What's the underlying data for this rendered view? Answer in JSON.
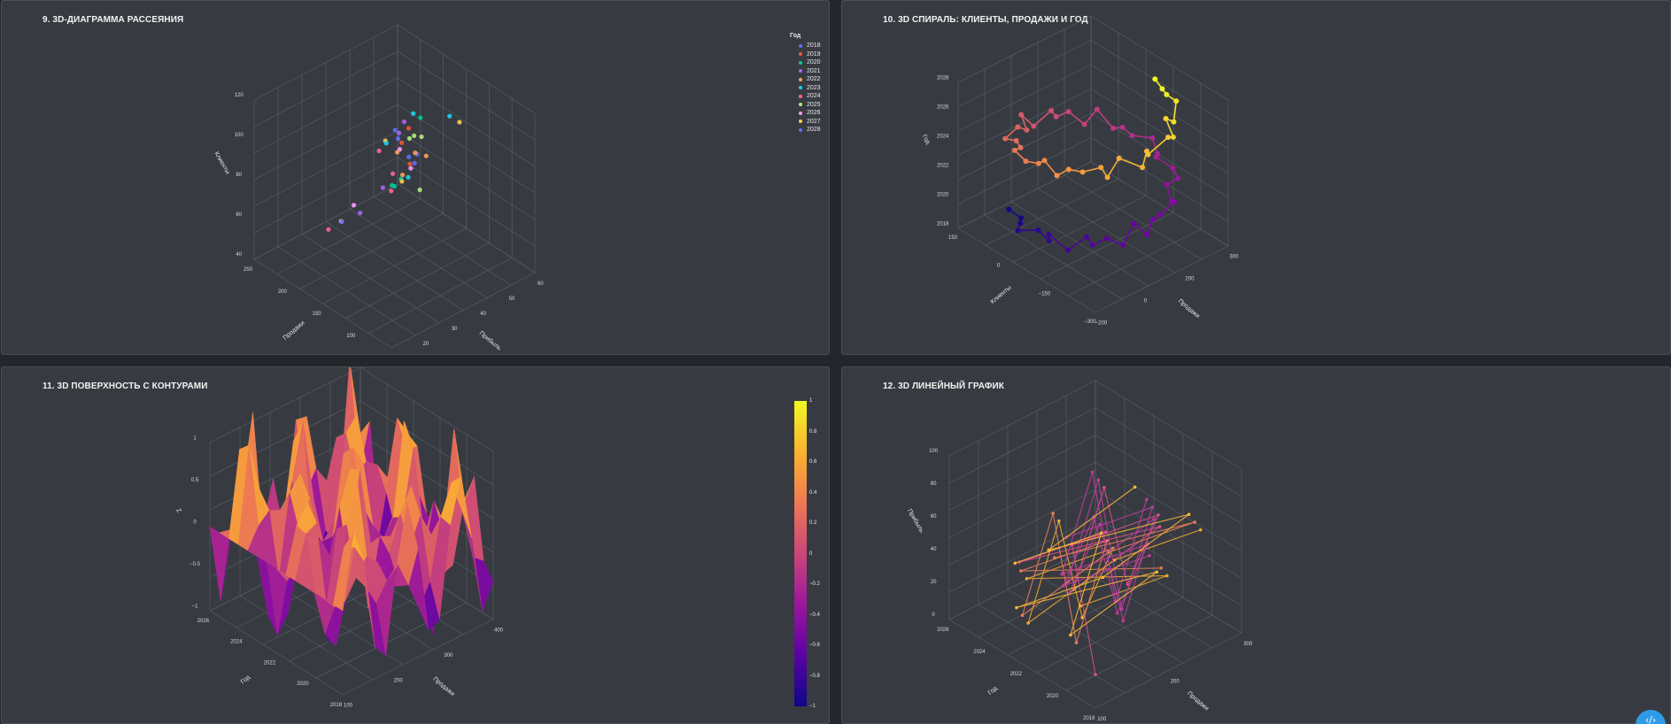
{
  "panels": [
    {
      "id": "p9",
      "title": "9. 3D-ДИАГРАММА РАССЕЯНИЯ"
    },
    {
      "id": "p10",
      "title": "10. 3D СПИРАЛЬ: КЛИЕНТЫ, ПРОДАЖИ И ГОД"
    },
    {
      "id": "p11",
      "title": "11. 3D ПОВЕРХНОСТЬ С КОНТУРАМИ"
    },
    {
      "id": "p12",
      "title": "12. 3D ЛИНЕЙНЫЙ ГРАФИК"
    }
  ],
  "fab": {
    "icon": "code-toggle-icon",
    "glyph": "‹/›"
  },
  "colors": {
    "panel": "#373b41",
    "page": "#23262b",
    "grid": "#5a5f68",
    "text": "#e8e8e8"
  },
  "chart_data": [
    {
      "panel": "p9",
      "type": "scatter",
      "title": "9. 3D-ДИАГРАММА РАССЕЯНИЯ",
      "axes": {
        "z": {
          "label": "Клиенты",
          "ticks": [
            "40",
            "60",
            "80",
            "100",
            "120"
          ]
        },
        "x": {
          "label": "Прибыль",
          "ticks": [
            "10",
            "20",
            "30",
            "40",
            "50",
            "60"
          ]
        },
        "y": {
          "label": "Продажи",
          "ticks": [
            "50",
            "100",
            "150",
            "200",
            "250"
          ]
        }
      },
      "legend": {
        "title": "Год",
        "placement": "top-right",
        "items": [
          {
            "name": "2018",
            "color": "#636efa"
          },
          {
            "name": "2019",
            "color": "#ef553b"
          },
          {
            "name": "2020",
            "color": "#00cc96"
          },
          {
            "name": "2021",
            "color": "#ab63fa"
          },
          {
            "name": "2022",
            "color": "#ffa15a"
          },
          {
            "name": "2023",
            "color": "#19d3f3"
          },
          {
            "name": "2024",
            "color": "#ff6692"
          },
          {
            "name": "2025",
            "color": "#b6e880"
          },
          {
            "name": "2026",
            "color": "#ff97ff"
          },
          {
            "name": "2027",
            "color": "#fecb52"
          },
          {
            "name": "2028",
            "color": "#636efa"
          }
        ]
      },
      "points": [
        [
          32,
          170,
          95,
          0
        ],
        [
          35,
          160,
          100,
          1
        ],
        [
          30,
          140,
          90,
          2
        ],
        [
          38,
          175,
          105,
          3
        ],
        [
          34,
          150,
          98,
          4
        ],
        [
          36,
          180,
          110,
          5
        ],
        [
          31,
          130,
          85,
          6
        ],
        [
          40,
          190,
          92,
          7
        ],
        [
          33,
          165,
          88,
          8
        ],
        [
          37,
          145,
          102,
          9
        ],
        [
          29,
          155,
          96,
          10
        ],
        [
          35,
          170,
          91,
          0
        ],
        [
          39,
          185,
          99,
          1
        ],
        [
          32,
          135,
          86,
          2
        ],
        [
          36,
          160,
          104,
          3
        ],
        [
          34,
          175,
          93,
          4
        ],
        [
          30,
          150,
          89,
          5
        ],
        [
          38,
          140,
          97,
          6
        ],
        [
          33,
          180,
          101,
          7
        ],
        [
          37,
          165,
          94,
          8
        ],
        [
          31,
          145,
          87,
          9
        ],
        [
          35,
          155,
          103,
          10
        ],
        [
          40,
          170,
          100,
          0
        ],
        [
          32,
          160,
          92,
          1
        ],
        [
          36,
          190,
          106,
          2
        ],
        [
          34,
          130,
          84,
          3
        ],
        [
          30,
          175,
          95,
          4
        ],
        [
          38,
          150,
          99,
          5
        ],
        [
          33,
          140,
          90,
          6
        ],
        [
          37,
          185,
          97,
          7
        ],
        [
          42,
          120,
          70,
          8
        ],
        [
          44,
          110,
          62,
          9
        ],
        [
          46,
          100,
          58,
          6
        ],
        [
          41,
          125,
          66,
          3
        ],
        [
          45,
          115,
          60,
          0
        ],
        [
          28,
          200,
          112,
          5
        ],
        [
          27,
          210,
          108,
          9
        ],
        [
          35,
          150,
          80,
          2
        ],
        [
          36,
          165,
          82,
          4
        ],
        [
          31,
          170,
          78,
          7
        ]
      ]
    },
    {
      "panel": "p10",
      "type": "line",
      "title": "10. 3D СПИРАЛЬ: КЛИЕНТЫ, ПРОДАЖИ И ГОД",
      "axes": {
        "z": {
          "label": "Год",
          "ticks": [
            "2018",
            "2020",
            "2022",
            "2024",
            "2026",
            "2028"
          ]
        },
        "x": {
          "label": "Продажи",
          "ticks": [
            "−200",
            "0",
            "200",
            "300"
          ]
        },
        "y": {
          "label": "Клиенты",
          "ticks": [
            "−300",
            "−150",
            "0",
            "150"
          ]
        }
      },
      "series": [
        {
          "turns": 1.6,
          "points": 60
        }
      ]
    },
    {
      "panel": "p11",
      "type": "surface",
      "title": "11. 3D ПОВЕРХНОСТЬ С КОНТУРАМИ",
      "axes": {
        "z": {
          "label": "Z",
          "ticks": [
            "−1",
            "−0.5",
            "0",
            "0.5",
            "1"
          ]
        },
        "x": {
          "label": "Продажи",
          "ticks": [
            "100",
            "200",
            "300",
            "400"
          ]
        },
        "y": {
          "label": "Год",
          "ticks": [
            "2018",
            "2020",
            "2022",
            "2024",
            "2026"
          ]
        }
      },
      "colorbar": {
        "ticks": [
          "1",
          "0.8",
          "0.6",
          "0.4",
          "0.2",
          "0",
          "−0.2",
          "−0.4",
          "−0.6",
          "−0.8",
          "−1"
        ],
        "range": [
          -1,
          1
        ]
      }
    },
    {
      "panel": "p12",
      "type": "line",
      "title": "12. 3D ЛИНЕЙНЫЙ ГРАФИК",
      "axes": {
        "z": {
          "label": "Прибыль",
          "ticks": [
            "0",
            "20",
            "40",
            "60",
            "80",
            "100"
          ]
        },
        "x": {
          "label": "Продажи",
          "ticks": [
            "100",
            "200",
            "300"
          ]
        },
        "y": {
          "label": "Год",
          "ticks": [
            "2018",
            "2020",
            "2022",
            "2024",
            "2026"
          ]
        }
      }
    }
  ]
}
